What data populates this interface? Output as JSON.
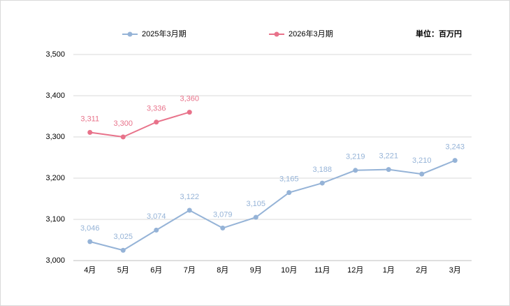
{
  "chart_data": {
    "type": "line",
    "annotations": {
      "unit": "単位：百万円"
    },
    "categories": [
      "4月",
      "5月",
      "6月",
      "7月",
      "8月",
      "9月",
      "10月",
      "11月",
      "12月",
      "1月",
      "2月",
      "3月"
    ],
    "series": [
      {
        "name": "2025年3月期",
        "color": "#95b3d7",
        "values": [
          3046,
          3025,
          3074,
          3122,
          3079,
          3105,
          3165,
          3188,
          3219,
          3221,
          3210,
          3243
        ],
        "value_labels": [
          "3,046",
          "3,025",
          "3,074",
          "3,122",
          "3,079",
          "3,105",
          "3,165",
          "3,188",
          "3,219",
          "3,221",
          "3,210",
          "3,243"
        ]
      },
      {
        "name": "2026年3月期",
        "color": "#e8728a",
        "values": [
          3311,
          3300,
          3336,
          3360,
          null,
          null,
          null,
          null,
          null,
          null,
          null,
          null
        ],
        "value_labels": [
          "3,311",
          "3,300",
          "3,336",
          "3,360",
          null,
          null,
          null,
          null,
          null,
          null,
          null,
          null
        ]
      }
    ],
    "ylim": [
      3000,
      3500
    ],
    "yticks": [
      {
        "value": 3000,
        "label": "3,000"
      },
      {
        "value": 3100,
        "label": "3,100"
      },
      {
        "value": 3200,
        "label": "3,200"
      },
      {
        "value": 3300,
        "label": "3,300"
      },
      {
        "value": 3400,
        "label": "3,400"
      },
      {
        "value": 3500,
        "label": "3,500"
      }
    ],
    "grid": true,
    "legend": "top"
  }
}
